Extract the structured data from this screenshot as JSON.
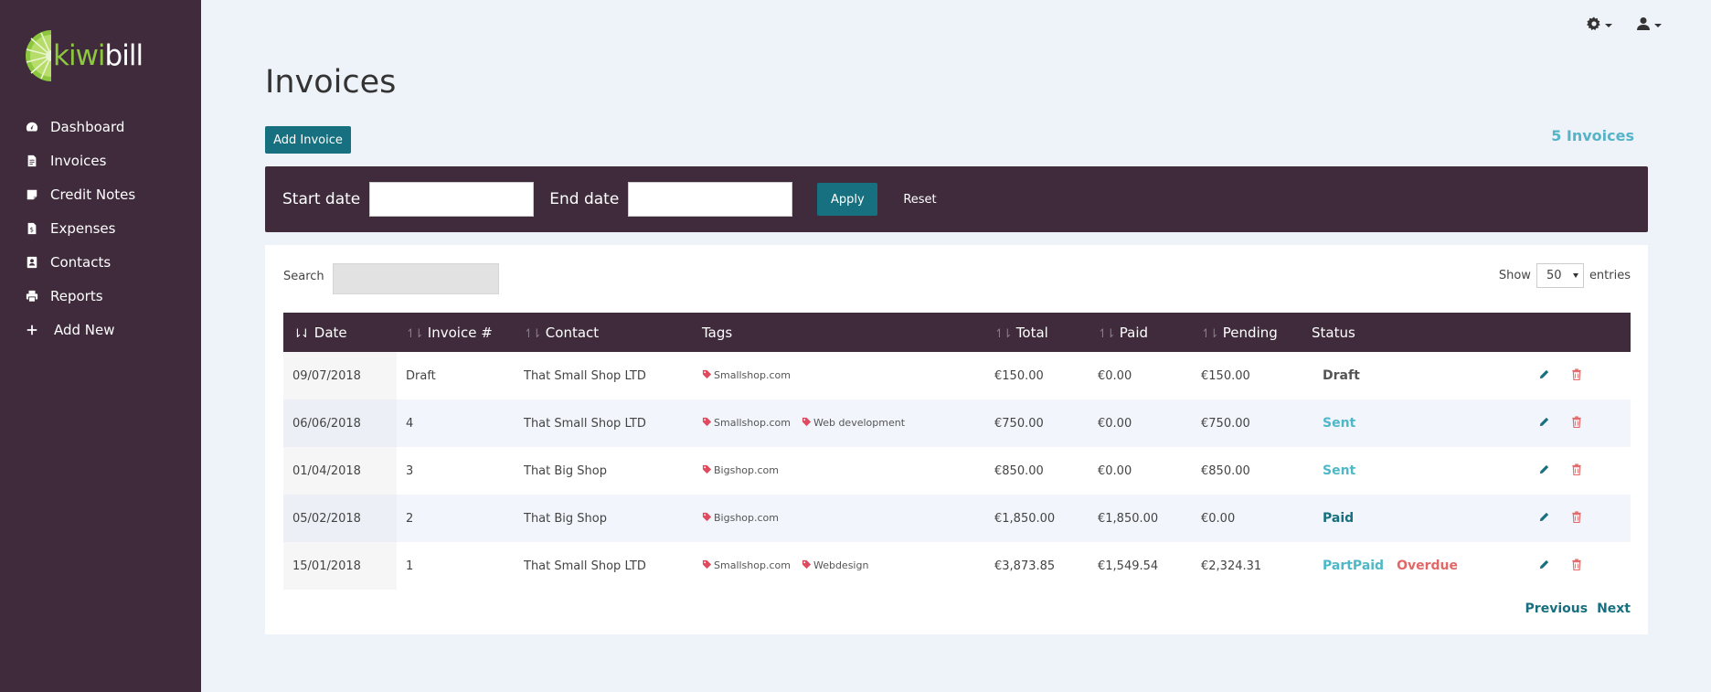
{
  "app": {
    "logo_kiwi": "kiwi",
    "logo_bill": "bill"
  },
  "sidebar": {
    "items": [
      {
        "label": "Dashboard",
        "icon": "dashboard-icon"
      },
      {
        "label": "Invoices",
        "icon": "invoice-icon"
      },
      {
        "label": "Credit Notes",
        "icon": "credit-note-icon"
      },
      {
        "label": "Expenses",
        "icon": "expense-icon"
      },
      {
        "label": "Contacts",
        "icon": "contact-icon"
      },
      {
        "label": "Reports",
        "icon": "print-icon"
      },
      {
        "label": "Add New",
        "icon": "plus-icon"
      }
    ]
  },
  "page": {
    "title": "Invoices",
    "add_button": "Add Invoice",
    "count_label": "5 Invoices"
  },
  "filter": {
    "start_label": "Start date",
    "end_label": "End date",
    "start_value": "",
    "end_value": "",
    "apply": "Apply",
    "reset": "Reset"
  },
  "table_controls": {
    "search_label": "Search",
    "search_value": "",
    "show_label": "Show",
    "entries_value": "50",
    "entries_label": "entries"
  },
  "table": {
    "columns": [
      "Date",
      "Invoice #",
      "Contact",
      "Tags",
      "Total",
      "Paid",
      "Pending",
      "Status"
    ],
    "rows": [
      {
        "date": "09/07/2018",
        "invoice": "Draft",
        "contact": "That Small Shop LTD",
        "tags": [
          "Smallshop.com"
        ],
        "total": "€150.00",
        "paid": "€0.00",
        "pending": "€150.00",
        "status": "Draft",
        "status_class": "status-draft",
        "overdue": ""
      },
      {
        "date": "06/06/2018",
        "invoice": "4",
        "contact": "That Small Shop LTD",
        "tags": [
          "Smallshop.com",
          "Web development"
        ],
        "total": "€750.00",
        "paid": "€0.00",
        "pending": "€750.00",
        "status": "Sent",
        "status_class": "status-sent",
        "overdue": ""
      },
      {
        "date": "01/04/2018",
        "invoice": "3",
        "contact": "That Big Shop",
        "tags": [
          "Bigshop.com"
        ],
        "total": "€850.00",
        "paid": "€0.00",
        "pending": "€850.00",
        "status": "Sent",
        "status_class": "status-sent",
        "overdue": ""
      },
      {
        "date": "05/02/2018",
        "invoice": "2",
        "contact": "That Big Shop",
        "tags": [
          "Bigshop.com"
        ],
        "total": "€1,850.00",
        "paid": "€1,850.00",
        "pending": "€0.00",
        "status": "Paid",
        "status_class": "status-paid",
        "overdue": ""
      },
      {
        "date": "15/01/2018",
        "invoice": "1",
        "contact": "That Small Shop LTD",
        "tags": [
          "Smallshop.com",
          "Webdesign"
        ],
        "total": "€3,873.85",
        "paid": "€1,549.54",
        "pending": "€2,324.31",
        "status": "PartPaid",
        "status_class": "status-partpaid",
        "overdue": "Overdue"
      }
    ]
  },
  "pager": {
    "previous": "Previous",
    "next": "Next"
  },
  "colors": {
    "sidebar": "#3f2b3c",
    "accent": "#17707f",
    "tag": "#e04a5f",
    "overdue": "#e26868"
  }
}
